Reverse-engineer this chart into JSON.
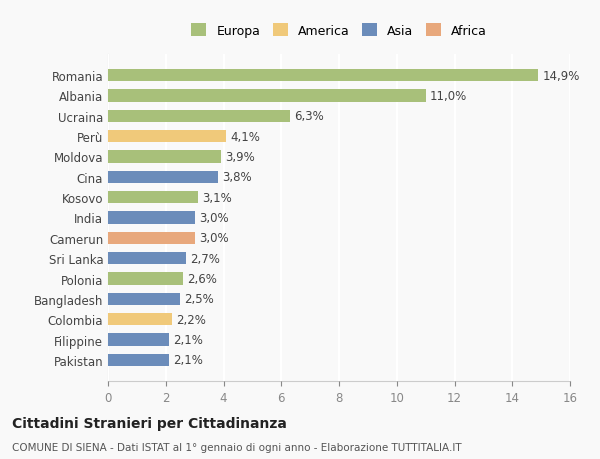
{
  "categories": [
    "Pakistan",
    "Filippine",
    "Colombia",
    "Bangladesh",
    "Polonia",
    "Sri Lanka",
    "Camerun",
    "India",
    "Kosovo",
    "Cina",
    "Moldova",
    "Perù",
    "Ucraina",
    "Albania",
    "Romania"
  ],
  "values": [
    2.1,
    2.1,
    2.2,
    2.5,
    2.6,
    2.7,
    3.0,
    3.0,
    3.1,
    3.8,
    3.9,
    4.1,
    6.3,
    11.0,
    14.9
  ],
  "labels": [
    "2,1%",
    "2,1%",
    "2,2%",
    "2,5%",
    "2,6%",
    "2,7%",
    "3,0%",
    "3,0%",
    "3,1%",
    "3,8%",
    "3,9%",
    "4,1%",
    "6,3%",
    "11,0%",
    "14,9%"
  ],
  "colors": [
    "#6b8cba",
    "#6b8cba",
    "#f0c97a",
    "#6b8cba",
    "#a8c07a",
    "#6b8cba",
    "#e8a87c",
    "#6b8cba",
    "#a8c07a",
    "#6b8cba",
    "#a8c07a",
    "#f0c97a",
    "#a8c07a",
    "#a8c07a",
    "#a8c07a"
  ],
  "legend_names": [
    "Europa",
    "America",
    "Asia",
    "Africa"
  ],
  "legend_colors": [
    "#a8c07a",
    "#f0c97a",
    "#6b8cba",
    "#e8a87c"
  ],
  "xlim": [
    0,
    16
  ],
  "xticks": [
    0,
    2,
    4,
    6,
    8,
    10,
    12,
    14,
    16
  ],
  "title": "Cittadini Stranieri per Cittadinanza",
  "subtitle": "COMUNE DI SIENA - Dati ISTAT al 1° gennaio di ogni anno - Elaborazione TUTTITALIA.IT",
  "background_color": "#f9f9f9",
  "bar_height": 0.6,
  "grid_color": "#ffffff",
  "text_fontsize": 8.5,
  "label_fontsize": 8.5
}
